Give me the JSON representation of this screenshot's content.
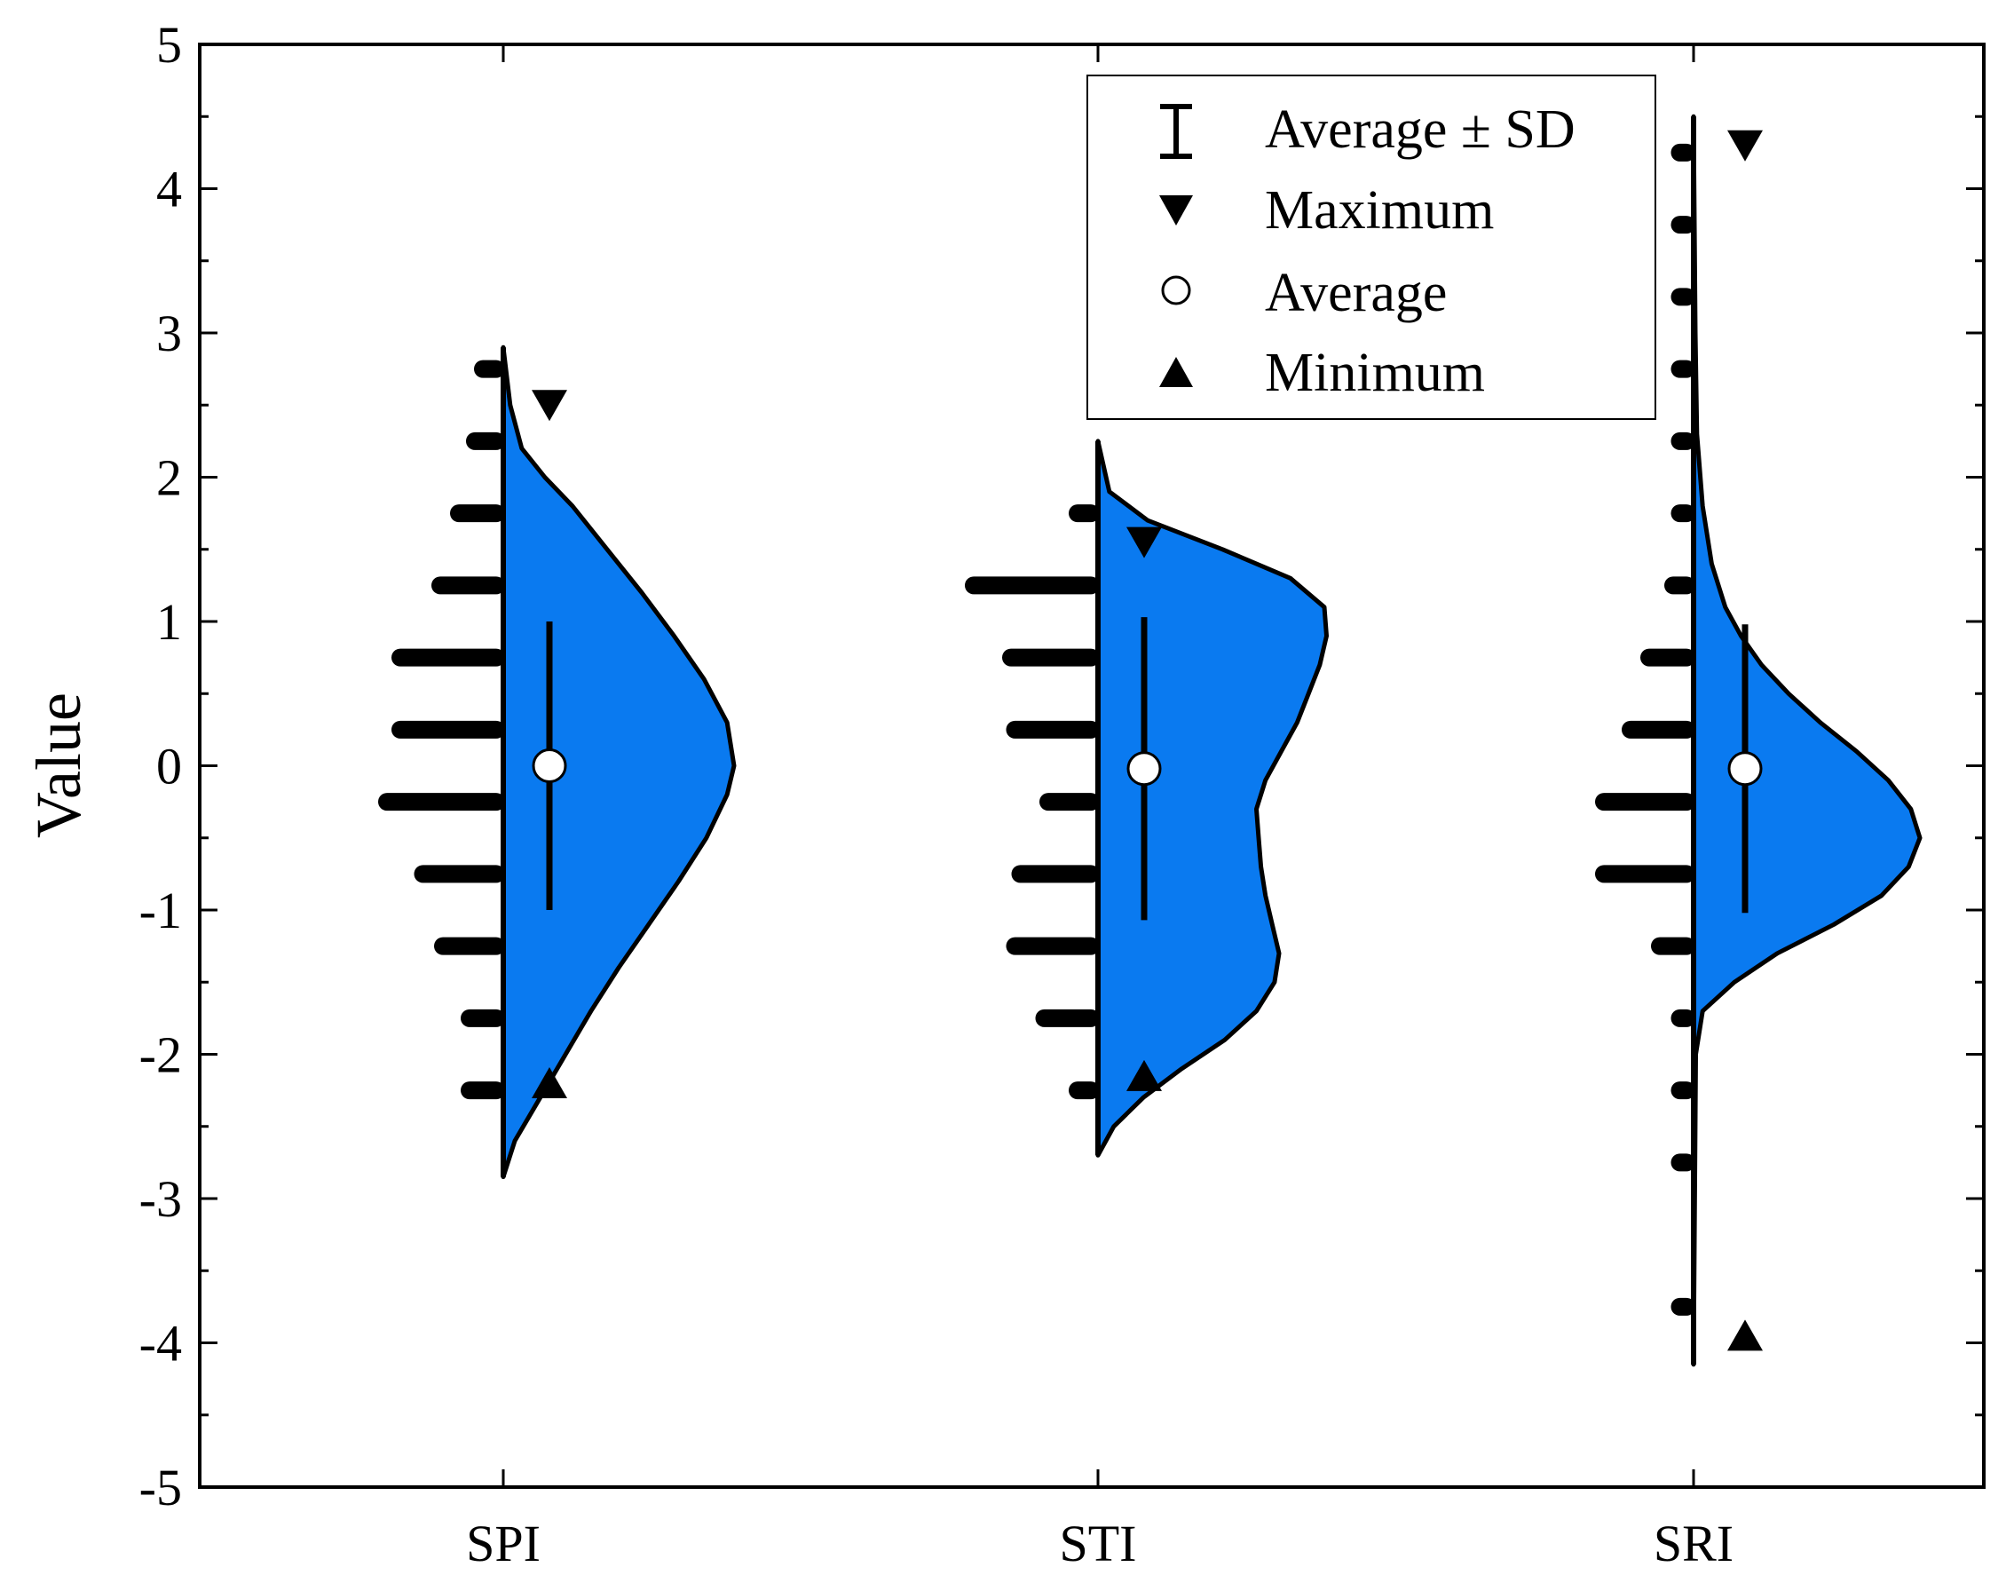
{
  "chart_data": {
    "type": "half-violin",
    "ylabel": "Value",
    "xlabel": "",
    "ylim": [
      -5,
      5
    ],
    "yticks": [
      -5,
      -4,
      -3,
      -2,
      -1,
      0,
      1,
      2,
      3,
      4,
      5
    ],
    "ytick_labels": [
      "-5",
      "-4",
      "-3",
      "-2",
      "-1",
      "0",
      "1",
      "2",
      "3",
      "4",
      "5"
    ],
    "categories": [
      "SPI",
      "STI",
      "SRI"
    ],
    "violin_color": "#0a7af0",
    "legend": {
      "position": "top-right",
      "entries": [
        {
          "label": "Average ± SD",
          "symbol": "errorbar"
        },
        {
          "label": "Maximum",
          "symbol": "triangle-down"
        },
        {
          "label": "Average",
          "symbol": "circle-open"
        },
        {
          "label": "Minimum",
          "symbol": "triangle-up"
        }
      ]
    },
    "series": [
      {
        "name": "SPI",
        "mean": 0.0,
        "sd": 1.0,
        "max": 2.5,
        "min": -2.2,
        "range": [
          -2.85,
          2.9
        ],
        "density": [
          [
            -2.85,
            0.0
          ],
          [
            -2.6,
            0.05
          ],
          [
            -2.3,
            0.16
          ],
          [
            -2.0,
            0.27
          ],
          [
            -1.7,
            0.38
          ],
          [
            -1.4,
            0.5
          ],
          [
            -1.1,
            0.63
          ],
          [
            -0.8,
            0.76
          ],
          [
            -0.5,
            0.88
          ],
          [
            -0.2,
            0.97
          ],
          [
            0.0,
            1.0
          ],
          [
            0.3,
            0.97
          ],
          [
            0.6,
            0.87
          ],
          [
            0.9,
            0.74
          ],
          [
            1.2,
            0.6
          ],
          [
            1.5,
            0.45
          ],
          [
            1.8,
            0.3
          ],
          [
            2.0,
            0.18
          ],
          [
            2.2,
            0.08
          ],
          [
            2.5,
            0.03
          ],
          [
            2.9,
            0.0
          ]
        ],
        "histogram": [
          [
            -2.25,
            0.2
          ],
          [
            -1.75,
            0.2
          ],
          [
            -1.25,
            0.4
          ],
          [
            -0.75,
            0.55
          ],
          [
            -0.25,
            0.82
          ],
          [
            0.25,
            0.72
          ],
          [
            0.75,
            0.72
          ],
          [
            1.25,
            0.42
          ],
          [
            1.75,
            0.28
          ],
          [
            2.25,
            0.16
          ],
          [
            2.75,
            0.1
          ]
        ]
      },
      {
        "name": "STI",
        "mean": -0.02,
        "sd": 1.05,
        "max": 1.55,
        "min": -2.15,
        "range": [
          -2.7,
          2.25
        ],
        "density": [
          [
            -2.7,
            0.0
          ],
          [
            -2.5,
            0.07
          ],
          [
            -2.3,
            0.2
          ],
          [
            -2.1,
            0.37
          ],
          [
            -1.9,
            0.56
          ],
          [
            -1.7,
            0.7
          ],
          [
            -1.5,
            0.78
          ],
          [
            -1.3,
            0.8
          ],
          [
            -1.1,
            0.77
          ],
          [
            -0.9,
            0.74
          ],
          [
            -0.7,
            0.72
          ],
          [
            -0.5,
            0.71
          ],
          [
            -0.3,
            0.7
          ],
          [
            -0.1,
            0.74
          ],
          [
            0.1,
            0.81
          ],
          [
            0.3,
            0.88
          ],
          [
            0.5,
            0.93
          ],
          [
            0.7,
            0.98
          ],
          [
            0.9,
            1.01
          ],
          [
            1.1,
            1.0
          ],
          [
            1.3,
            0.85
          ],
          [
            1.5,
            0.55
          ],
          [
            1.7,
            0.22
          ],
          [
            1.9,
            0.05
          ],
          [
            2.25,
            0.0
          ]
        ],
        "histogram": [
          [
            -2.25,
            0.1
          ],
          [
            -1.75,
            0.35
          ],
          [
            -1.25,
            0.57
          ],
          [
            -0.75,
            0.53
          ],
          [
            -0.25,
            0.32
          ],
          [
            0.25,
            0.57
          ],
          [
            0.75,
            0.6
          ],
          [
            1.25,
            0.88
          ],
          [
            1.75,
            0.1
          ]
        ]
      },
      {
        "name": "SRI",
        "mean": -0.02,
        "sd": 1.0,
        "max": 4.3,
        "min": -3.95,
        "range": [
          -4.15,
          4.5
        ],
        "density": [
          [
            -4.15,
            0.0
          ],
          [
            -2.0,
            0.01
          ],
          [
            -1.7,
            0.04
          ],
          [
            -1.5,
            0.18
          ],
          [
            -1.3,
            0.37
          ],
          [
            -1.1,
            0.62
          ],
          [
            -0.9,
            0.83
          ],
          [
            -0.7,
            0.95
          ],
          [
            -0.5,
            1.0
          ],
          [
            -0.3,
            0.96
          ],
          [
            -0.1,
            0.86
          ],
          [
            0.1,
            0.72
          ],
          [
            0.3,
            0.56
          ],
          [
            0.5,
            0.42
          ],
          [
            0.7,
            0.3
          ],
          [
            0.9,
            0.21
          ],
          [
            1.1,
            0.14
          ],
          [
            1.4,
            0.08
          ],
          [
            1.8,
            0.04
          ],
          [
            2.3,
            0.015
          ],
          [
            3.0,
            0.008
          ],
          [
            4.5,
            0.0
          ]
        ],
        "histogram": [
          [
            -3.75,
            0.05
          ],
          [
            -2.75,
            0.05
          ],
          [
            -2.25,
            0.05
          ],
          [
            -1.75,
            0.05
          ],
          [
            -1.25,
            0.2
          ],
          [
            -0.75,
            0.62
          ],
          [
            -0.25,
            0.62
          ],
          [
            0.25,
            0.42
          ],
          [
            0.75,
            0.28
          ],
          [
            1.25,
            0.1
          ],
          [
            1.75,
            0.05
          ],
          [
            2.25,
            0.05
          ],
          [
            2.75,
            0.05
          ],
          [
            3.25,
            0.05
          ],
          [
            3.75,
            0.05
          ],
          [
            4.25,
            0.05
          ]
        ]
      }
    ]
  }
}
